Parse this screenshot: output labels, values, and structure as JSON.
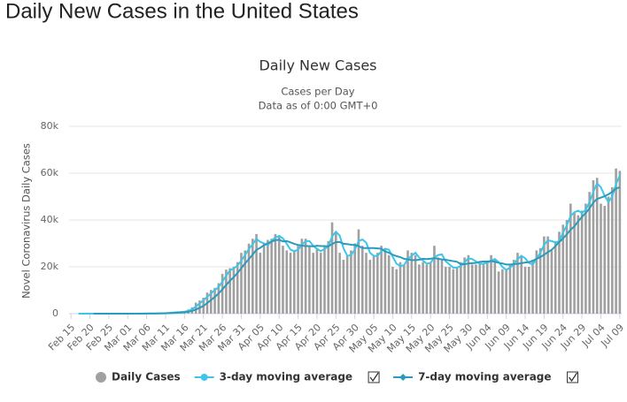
{
  "page_heading": "Daily New Cases in the United States",
  "chart_data": {
    "type": "bar",
    "title": "Daily New Cases",
    "subtitle": "Cases per Day",
    "note": "Data as of 0:00 GMT+0",
    "ylabel": "Novel Coronavirus Daily Cases",
    "categories": [
      "Feb 15",
      null,
      null,
      null,
      null,
      "Feb 20",
      null,
      null,
      null,
      null,
      "Feb 25",
      null,
      null,
      null,
      null,
      "Mar 01",
      null,
      null,
      null,
      null,
      "Mar 06",
      null,
      null,
      null,
      null,
      "Mar 11",
      null,
      null,
      null,
      null,
      "Mar 16",
      null,
      null,
      null,
      null,
      "Mar 21",
      null,
      null,
      null,
      null,
      "Mar 26",
      null,
      null,
      null,
      null,
      "Mar 31",
      null,
      null,
      null,
      null,
      "Apr 05",
      null,
      null,
      null,
      null,
      "Apr 10",
      null,
      null,
      null,
      null,
      "Apr 15",
      null,
      null,
      null,
      null,
      "Apr 20",
      null,
      null,
      null,
      null,
      "Apr 25",
      null,
      null,
      null,
      null,
      "Apr 30",
      null,
      null,
      null,
      null,
      "May 05",
      null,
      null,
      null,
      null,
      "May 10",
      null,
      null,
      null,
      null,
      "May 15",
      null,
      null,
      null,
      null,
      "May 20",
      null,
      null,
      null,
      null,
      "May 25",
      null,
      null,
      null,
      null,
      "May 30",
      null,
      null,
      null,
      null,
      "Jun 04",
      null,
      null,
      null,
      null,
      "Jun 09",
      null,
      null,
      null,
      null,
      "Jun 14",
      null,
      null,
      null,
      null,
      "Jun 19",
      null,
      null,
      null,
      null,
      "Jun 24",
      null,
      null,
      null,
      null,
      "Jun 29",
      null,
      null,
      null,
      null,
      "Jul 04",
      null,
      null,
      null,
      null,
      "Jul 09"
    ],
    "series": [
      {
        "name": "Daily Cases",
        "type": "bar",
        "color": "#a0a0a0",
        "values": [
          0,
          0,
          0,
          0,
          0,
          0,
          1,
          0,
          0,
          10,
          0,
          3,
          1,
          3,
          4,
          7,
          22,
          24,
          28,
          66,
          54,
          94,
          116,
          139,
          292,
          269,
          500,
          600,
          800,
          700,
          1000,
          1800,
          2700,
          4700,
          5600,
          6800,
          9000,
          10100,
          11000,
          13000,
          17000,
          18800,
          19400,
          20000,
          22000,
          26000,
          27000,
          29900,
          32000,
          34000,
          26000,
          30000,
          31500,
          32000,
          34000,
          33500,
          29000,
          27000,
          26000,
          27000,
          29000,
          32000,
          32000,
          29000,
          26000,
          28000,
          26000,
          29000,
          31000,
          39000,
          35000,
          26000,
          23000,
          25000,
          27000,
          30000,
          36000,
          29000,
          26000,
          23000,
          25000,
          26000,
          29000,
          28000,
          25000,
          20000,
          19000,
          22000,
          21000,
          27000,
          26000,
          25000,
          21000,
          22000,
          21000,
          22000,
          29000,
          24000,
          23000,
          20000,
          20000,
          19000,
          20000,
          22000,
          24000,
          25000,
          21000,
          21000,
          22000,
          21000,
          22000,
          25000,
          23000,
          18000,
          19000,
          19000,
          21000,
          23000,
          26000,
          25000,
          20000,
          20000,
          23000,
          27000,
          28000,
          33000,
          33000,
          27000,
          31000,
          35000,
          38000,
          40000,
          47000,
          43000,
          42000,
          44000,
          47000,
          52000,
          57000,
          58000,
          47000,
          46000,
          50000,
          54000,
          62000,
          61000
        ]
      },
      {
        "name": "3-day moving average",
        "type": "line",
        "color": "#3ec6ea",
        "values": [
          null,
          null,
          0,
          0,
          0,
          0,
          0,
          0,
          0,
          3,
          3,
          4,
          1,
          2,
          3,
          5,
          11,
          18,
          25,
          39,
          49,
          71,
          88,
          116,
          182,
          233,
          354,
          456,
          633,
          700,
          833,
          1167,
          1833,
          3067,
          4333,
          5700,
          7133,
          8633,
          10033,
          11367,
          13667,
          16267,
          18400,
          19400,
          20467,
          22667,
          25000,
          27633,
          29633,
          31967,
          30667,
          30000,
          29167,
          31167,
          32500,
          33167,
          32167,
          29833,
          27333,
          26667,
          27333,
          29333,
          31000,
          31000,
          29000,
          27667,
          26667,
          27667,
          28667,
          33000,
          35000,
          33333,
          28000,
          24667,
          25000,
          27333,
          31000,
          31667,
          30333,
          26000,
          24667,
          24667,
          26667,
          27667,
          27333,
          24333,
          21333,
          20333,
          20667,
          23333,
          24667,
          26000,
          24000,
          22667,
          21333,
          21667,
          24000,
          25000,
          25333,
          22333,
          21000,
          19667,
          19667,
          20333,
          22000,
          23667,
          23333,
          22333,
          21333,
          21333,
          21667,
          22667,
          23333,
          22000,
          20000,
          18667,
          19667,
          21000,
          23333,
          24667,
          23667,
          21667,
          21000,
          23333,
          26000,
          29333,
          31333,
          31000,
          30333,
          31000,
          34667,
          37667,
          41667,
          43333,
          44000,
          43000,
          44333,
          47667,
          52000,
          55667,
          54000,
          50333,
          47667,
          50000,
          55333,
          59000
        ]
      },
      {
        "name": "7-day moving average",
        "type": "line",
        "color": "#2b9bbd",
        "values": [
          null,
          null,
          null,
          null,
          null,
          null,
          0,
          0,
          0,
          2,
          2,
          2,
          2,
          2,
          3,
          4,
          6,
          9,
          13,
          22,
          29,
          42,
          58,
          74,
          113,
          147,
          209,
          287,
          388,
          471,
          594,
          810,
          1157,
          1757,
          2471,
          3329,
          4514,
          5814,
          7129,
          8600,
          10357,
          12243,
          14043,
          15614,
          17314,
          19457,
          21457,
          23300,
          25186,
          27271,
          28129,
          29271,
          30057,
          30771,
          31357,
          31571,
          30857,
          31000,
          30429,
          29786,
          29357,
          29071,
          28857,
          28857,
          28714,
          29000,
          28857,
          28857,
          28714,
          29714,
          30571,
          30571,
          29857,
          29714,
          29429,
          29286,
          28857,
          28000,
          28000,
          28000,
          28000,
          27857,
          27714,
          26571,
          26000,
          25143,
          24571,
          24143,
          23429,
          23143,
          22857,
          22857,
          23000,
          23429,
          23286,
          23429,
          23714,
          23429,
          23143,
          23000,
          22714,
          22429,
          22143,
          21143,
          21143,
          21429,
          21571,
          21714,
          22143,
          22286,
          22286,
          22429,
          22143,
          21714,
          21429,
          21000,
          21000,
          21143,
          21286,
          21571,
          21857,
          22000,
          22571,
          23429,
          24143,
          25143,
          26286,
          27286,
          28857,
          30571,
          32143,
          33857,
          35857,
          37286,
          39429,
          41286,
          43000,
          45000,
          47429,
          49000,
          49571,
          50143,
          51000,
          52000,
          53429,
          54000
        ]
      }
    ],
    "ylim": [
      0,
      80000
    ],
    "yticks": [
      {
        "value": 0,
        "label": "0"
      },
      {
        "value": 20000,
        "label": "20k"
      },
      {
        "value": 40000,
        "label": "40k"
      },
      {
        "value": 60000,
        "label": "60k"
      },
      {
        "value": 80000,
        "label": "80k"
      }
    ],
    "grid": true
  }
}
